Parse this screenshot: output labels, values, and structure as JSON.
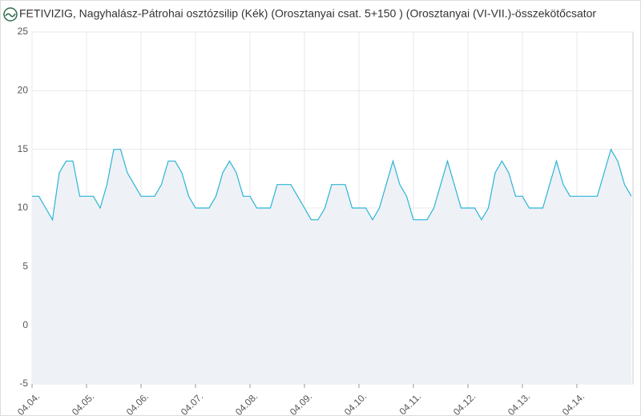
{
  "chart_data": {
    "type": "area-line",
    "title": "FETIVIZIG, Nagyhalász-Pátrohai osztózsilip (Kék) (Orosztanyai csat. 5+150 ) (Orosztanyai (VI-VII.)-összekötőcsator",
    "x": [
      0,
      0.125,
      0.25,
      0.375,
      0.5,
      0.625,
      0.75,
      0.875,
      1,
      1.125,
      1.25,
      1.375,
      1.5,
      1.625,
      1.75,
      1.875,
      2,
      2.125,
      2.25,
      2.375,
      2.5,
      2.625,
      2.75,
      2.875,
      3,
      3.125,
      3.25,
      3.375,
      3.5,
      3.625,
      3.75,
      3.875,
      4,
      4.125,
      4.25,
      4.375,
      4.5,
      4.625,
      4.75,
      4.875,
      5,
      5.125,
      5.25,
      5.375,
      5.5,
      5.625,
      5.75,
      5.875,
      6,
      6.125,
      6.25,
      6.375,
      6.5,
      6.625,
      6.75,
      6.875,
      7,
      7.125,
      7.25,
      7.375,
      7.5,
      7.625,
      7.75,
      7.875,
      8,
      8.125,
      8.25,
      8.375,
      8.5,
      8.625,
      8.75,
      8.875,
      9,
      9.125,
      9.25,
      9.375,
      9.5,
      9.625,
      9.75,
      9.875,
      10,
      10.125,
      10.25,
      10.375,
      10.5,
      10.625,
      10.75,
      10.875,
      11
    ],
    "values": [
      11,
      11,
      10,
      9,
      13,
      14,
      14,
      11,
      11,
      11,
      10,
      12,
      15,
      15,
      13,
      12,
      11,
      11,
      11,
      12,
      14,
      14,
      13,
      11,
      10,
      10,
      10,
      11,
      13,
      14,
      13,
      11,
      11,
      10,
      10,
      10,
      12,
      12,
      12,
      11,
      10,
      9,
      9,
      10,
      12,
      12,
      12,
      10,
      10,
      10,
      9,
      10,
      12,
      14,
      12,
      11,
      9,
      9,
      9,
      10,
      12,
      14,
      12,
      10,
      10,
      10,
      9,
      10,
      13,
      14,
      13,
      11,
      11,
      10,
      10,
      10,
      12,
      14,
      12,
      11,
      11,
      11,
      11,
      11,
      13,
      15,
      14,
      12,
      11
    ],
    "color": "#2bb5d6",
    "xlim": [
      0,
      11.03
    ],
    "xticks": [
      {
        "value": 0,
        "label": "04.04."
      },
      {
        "value": 1,
        "label": "04.05."
      },
      {
        "value": 2,
        "label": "04.06."
      },
      {
        "value": 3,
        "label": "04.07."
      },
      {
        "value": 4,
        "label": "04.08."
      },
      {
        "value": 5,
        "label": "04.09."
      },
      {
        "value": 6,
        "label": "04.10."
      },
      {
        "value": 7,
        "label": "04.11."
      },
      {
        "value": 8,
        "label": "04.12."
      },
      {
        "value": 9,
        "label": "04.13."
      },
      {
        "value": 10,
        "label": "04.14."
      }
    ],
    "ylim": [
      -5,
      25
    ],
    "yticks": [
      -5,
      0,
      5,
      10,
      15,
      20,
      25
    ],
    "grid": true
  }
}
